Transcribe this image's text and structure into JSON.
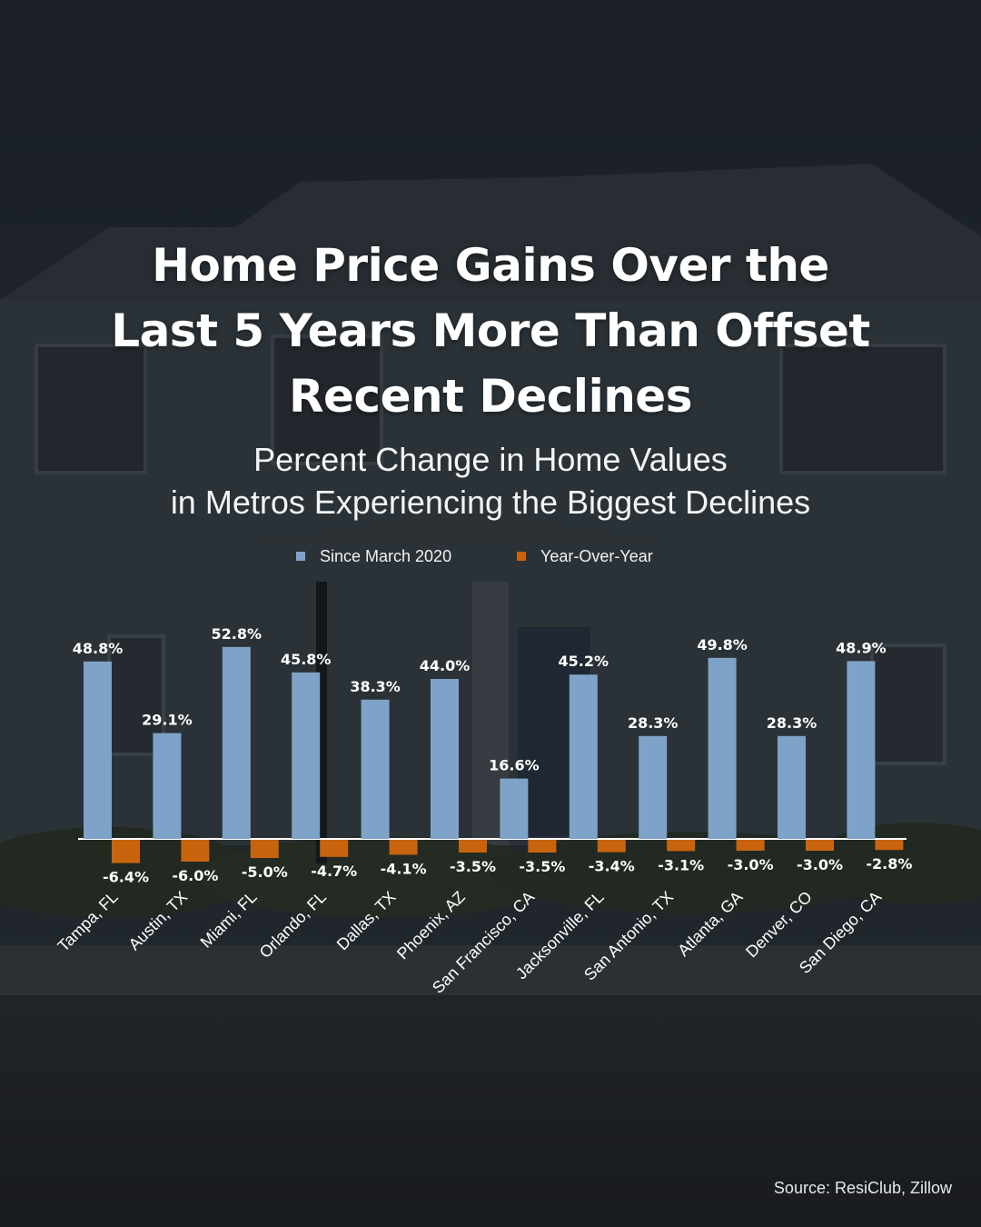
{
  "header": {
    "title_lines": [
      "Home Price Gains Over the",
      "Last 5 Years More Than Offset",
      "Recent Declines"
    ],
    "subtitle_lines": [
      "Percent Change in Home Values",
      "in Metros Experiencing the Biggest Declines"
    ]
  },
  "legend": {
    "items": [
      {
        "label": "Since March 2020",
        "color": "#7fa3c8"
      },
      {
        "label": "Year-Over-Year",
        "color": "#c8640e"
      }
    ]
  },
  "chart_data": {
    "type": "bar",
    "categories": [
      "Tampa, FL",
      "Austin, TX",
      "Miami, FL",
      "Orlando, FL",
      "Dallas, TX",
      "Phoenix, AZ",
      "San Francisco, CA",
      "Jacksonville, FL",
      "San Antonio, TX",
      "Atlanta, GA",
      "Denver, CO",
      "San Diego, CA"
    ],
    "series": [
      {
        "name": "Since March 2020",
        "color": "#7fa3c8",
        "values": [
          48.8,
          29.1,
          52.8,
          45.8,
          38.3,
          44.0,
          16.6,
          45.2,
          28.3,
          49.8,
          28.3,
          48.9
        ]
      },
      {
        "name": "Year-Over-Year",
        "color": "#c8640e",
        "values": [
          -6.4,
          -6.0,
          -5.0,
          -4.7,
          -4.1,
          -3.5,
          -3.5,
          -3.4,
          -3.1,
          -3.0,
          -3.0,
          -2.8
        ]
      }
    ],
    "data_labels": {
      "Since March 2020": [
        "48.8%",
        "29.1%",
        "52.8%",
        "45.8%",
        "38.3%",
        "44.0%",
        "16.6%",
        "45.2%",
        "28.3%",
        "49.8%",
        "28.3%",
        "48.9%"
      ],
      "Year-Over-Year": [
        "-6.4%",
        "-6.0%",
        "-5.0%",
        "-4.7%",
        "-4.1%",
        "-3.5%",
        "-3.5%",
        "-3.4%",
        "-3.1%",
        "-3.0%",
        "-3.0%",
        "-2.8%"
      ]
    },
    "xlabel": "",
    "ylabel": "",
    "ylim": [
      -7,
      55
    ],
    "grid": false,
    "legend_position": "top-center",
    "background_photo": "house-photo"
  },
  "footer": {
    "source": "Source: ResiClub, Zillow"
  }
}
